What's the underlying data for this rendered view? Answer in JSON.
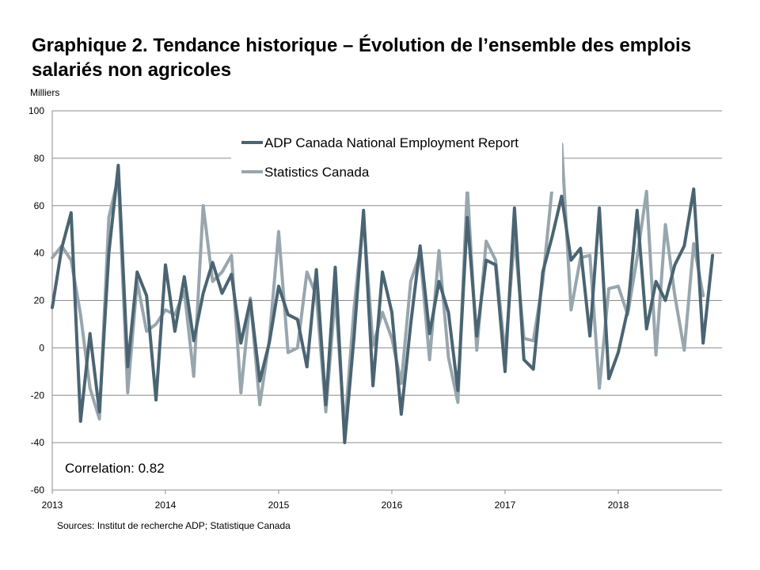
{
  "title": "Graphique 2. Tendance historique – Évolution de l’ensemble des emplois salariés non agricoles",
  "unit_label": "Milliers",
  "source": "Sources: Institut de recherche  ADP; Statistique Canada",
  "annotation": "Correlation: 0.82",
  "chart_data": {
    "type": "line",
    "ylim": [
      -60,
      100
    ],
    "yticks": [
      -60,
      -40,
      -20,
      0,
      20,
      40,
      60,
      80,
      100
    ],
    "xlim": [
      0,
      71
    ],
    "xticks": [
      {
        "label": "2013",
        "x": 0
      },
      {
        "label": "2014",
        "x": 12
      },
      {
        "label": "2015",
        "x": 24
      },
      {
        "label": "2016",
        "x": 36
      },
      {
        "label": "2017",
        "x": 48
      },
      {
        "label": "2018",
        "x": 60
      }
    ],
    "grid": "horizontal",
    "legend_position": "top-center",
    "series": [
      {
        "name": "ADP Canada National Employment Report",
        "color": "#4a6472",
        "values": [
          17,
          42,
          57,
          -31,
          6,
          -27,
          40,
          77,
          -8,
          32,
          22,
          -22,
          35,
          7,
          30,
          3,
          23,
          36,
          23,
          31,
          2,
          20,
          -14,
          2,
          26,
          14,
          12,
          -8,
          33,
          -24,
          34,
          -40,
          5,
          58,
          -16,
          32,
          15,
          -28,
          10,
          43,
          6,
          28,
          15,
          -18,
          55,
          5,
          37,
          35,
          -10,
          59,
          -5,
          -9,
          32,
          47,
          64,
          37,
          42,
          5,
          59,
          -13,
          -2,
          16,
          58,
          8,
          28,
          20,
          35,
          43,
          67,
          2,
          39
        ]
      },
      {
        "name": "Statistics Canada",
        "color": "#98a6ae",
        "values": [
          38,
          43,
          37,
          14,
          -17,
          -30,
          55,
          72,
          -19,
          28,
          7,
          10,
          16,
          14,
          24,
          -12,
          60,
          28,
          32,
          39,
          -19,
          21,
          -24,
          3,
          49,
          -2,
          0,
          32,
          22,
          -27,
          22,
          -34,
          17,
          55,
          1,
          15,
          4,
          -15,
          28,
          40,
          -5,
          41,
          -4,
          -23,
          68,
          -1,
          45,
          37,
          -3,
          47,
          4,
          3,
          28,
          68,
          86,
          16,
          38,
          39,
          -17,
          25,
          26,
          14,
          38,
          66,
          -3,
          52,
          22,
          -1,
          44,
          22
        ]
      }
    ]
  }
}
